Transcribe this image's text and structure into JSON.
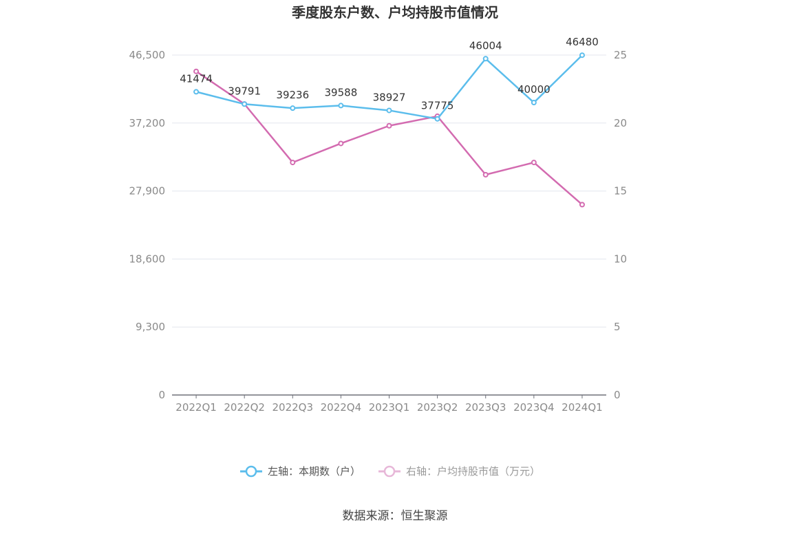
{
  "chart_data": {
    "type": "line",
    "title": "季度股东户数、户均持股市值情况",
    "categories": [
      "2022Q1",
      "2022Q2",
      "2022Q3",
      "2022Q4",
      "2023Q1",
      "2023Q2",
      "2023Q3",
      "2023Q4",
      "2024Q1"
    ],
    "left_axis": {
      "ticks": [
        "0",
        "9,300",
        "18,600",
        "27,900",
        "37,200",
        "46,500"
      ],
      "ylim": [
        0,
        46500
      ]
    },
    "right_axis": {
      "ticks": [
        "0",
        "5",
        "10",
        "15",
        "20",
        "25"
      ],
      "ylim": [
        0,
        25
      ]
    },
    "series": [
      {
        "name": "左轴：本期数（户）",
        "axis": "left",
        "color": "#5bbdec",
        "values": [
          41474,
          39791,
          39236,
          39588,
          38927,
          37775,
          46004,
          40000,
          46480
        ],
        "labels": [
          "41474",
          "39791",
          "39236",
          "39588",
          "38927",
          "37775",
          "46004",
          "40000",
          "46480"
        ]
      },
      {
        "name": "右轴：户均持股市值（万元）",
        "axis": "right",
        "color": "#d36bb0",
        "values": [
          23.8,
          21.4,
          17.1,
          18.5,
          19.8,
          20.5,
          16.2,
          17.1,
          14.0
        ]
      }
    ],
    "grid": true,
    "legend_position": "bottom"
  },
  "source_text": "数据来源：恒生聚源"
}
